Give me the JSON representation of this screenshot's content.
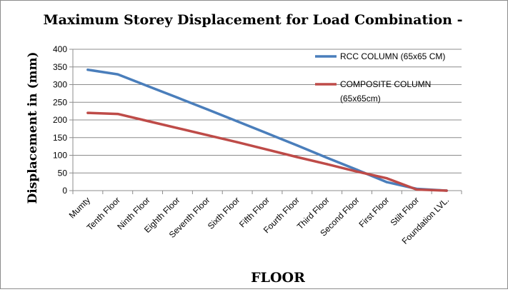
{
  "chart_data": {
    "type": "line",
    "title": "Maximum Storey Displacement for Load Combination -",
    "xlabel": "FLOOR",
    "ylabel": "Displacement in (mm)",
    "ylim": [
      0,
      400
    ],
    "yticks": [
      "0",
      "50",
      "100",
      "150",
      "200",
      "250",
      "300",
      "350",
      "400"
    ],
    "grid": true,
    "legend_position": "top-right",
    "categories": [
      "Mumty",
      "Tenth Floor",
      "Ninth Floor",
      "Eighth Floor",
      "Seventh Floor",
      "Sixth Floor",
      "Fifth Floor",
      "Fourth Floor",
      "Third Floor",
      "Second Floor",
      "First Floor",
      "Stilt Floor",
      "Foundation LVL."
    ],
    "series": [
      {
        "name": "RCC COLUMN (65x65 CM)",
        "legend_lines": [
          "RCC COLUMN (65x65 CM)"
        ],
        "color": "#4a7ebb",
        "values": [
          342,
          329,
          296,
          263,
          230,
          196,
          162,
          128,
          93,
          59,
          24,
          5,
          0
        ]
      },
      {
        "name": "COMPOSITE COLUMN (65x65cm)",
        "legend_lines": [
          "COMPOSITE COLUMN",
          "(65x65cm)"
        ],
        "color": "#be4b48",
        "values": [
          220,
          217,
          197,
          177,
          157,
          137,
          116,
          95,
          75,
          54,
          35,
          3,
          0
        ]
      }
    ]
  }
}
